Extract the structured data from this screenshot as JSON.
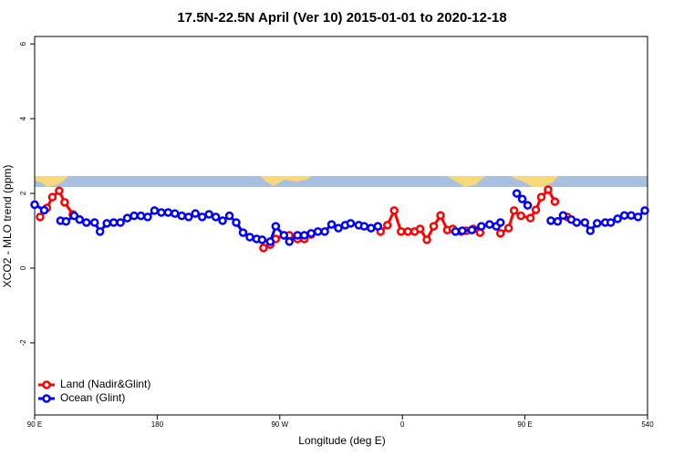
{
  "chart_data": {
    "type": "line",
    "title": "17.5N-22.5N April (Ver 10)   2015-01-01 to 2020-12-18",
    "xlabel": "Longitude (deg E)",
    "ylabel": "XCO2 - MLO trend (ppm)",
    "xlim": [
      90,
      540
    ],
    "ylim": [
      -3.93,
      6.2
    ],
    "xticks": [
      {
        "value": 90,
        "label": "90 E"
      },
      180,
      {
        "value": 270,
        "label": "90 W"
      },
      {
        "value": 360,
        "label": "0"
      },
      {
        "value": 450,
        "label": "90 E"
      },
      540
    ],
    "yticks": [
      -2,
      0,
      2,
      4,
      6
    ],
    "legend": "bottom-left",
    "series": [
      {
        "name": "Land (Nadir&Glint)",
        "color": "#ff0000",
        "x": [
          94,
          99,
          103,
          108,
          112,
          118,
          123,
          null,
          258,
          263,
          267,
          273,
          277,
          283,
          288,
          293,
          null,
          344,
          349,
          354,
          359,
          364,
          369,
          373,
          378,
          383,
          388,
          393,
          397,
          403,
          407,
          412,
          417,
          null,
          432,
          438,
          442,
          447,
          454,
          458,
          462,
          467,
          472,
          null,
          481
        ],
        "values": [
          1.37,
          1.61,
          1.9,
          2.07,
          1.76,
          1.44,
          1.3,
          null,
          0.54,
          0.63,
          0.78,
          0.88,
          0.88,
          0.78,
          0.78,
          0.9,
          null,
          0.98,
          1.15,
          1.54,
          0.98,
          0.98,
          0.98,
          1.05,
          0.76,
          1.12,
          1.41,
          1.02,
          1.05,
          0.98,
          1.0,
          1.05,
          0.95,
          null,
          0.93,
          1.07,
          1.54,
          1.4,
          1.34,
          1.56,
          1.9,
          2.1,
          1.78,
          null,
          1.37
        ]
      },
      {
        "name": "Ocean (Glint)",
        "color": "#0000ff",
        "x": [
          90,
          97,
          null,
          109,
          113,
          119,
          123,
          128,
          134,
          138,
          143,
          148,
          153,
          158,
          163,
          168,
          173,
          178,
          183,
          188,
          193,
          198,
          203,
          208,
          213,
          218,
          223,
          228,
          233,
          238,
          243,
          248,
          253,
          257,
          263,
          267,
          273,
          277,
          283,
          288,
          293,
          298,
          303,
          308,
          313,
          318,
          322,
          328,
          332,
          337,
          342,
          null,
          399,
          404,
          411,
          418,
          424,
          429,
          432,
          null,
          444,
          448,
          452,
          null,
          469,
          474,
          478,
          484,
          488,
          494,
          498,
          503,
          509,
          513,
          518,
          523,
          528,
          533,
          538
        ],
        "values": [
          1.7,
          1.55,
          null,
          1.27,
          1.25,
          1.4,
          1.3,
          1.22,
          1.22,
          0.98,
          1.2,
          1.22,
          1.22,
          1.34,
          1.4,
          1.4,
          1.37,
          1.54,
          1.49,
          1.49,
          1.46,
          1.4,
          1.37,
          1.46,
          1.37,
          1.44,
          1.37,
          1.27,
          1.4,
          1.22,
          0.95,
          0.83,
          0.78,
          0.76,
          0.71,
          1.12,
          0.88,
          0.71,
          0.88,
          0.88,
          0.93,
          0.98,
          0.98,
          1.17,
          1.07,
          1.15,
          1.2,
          1.15,
          1.12,
          1.07,
          1.12,
          null,
          0.98,
          1.0,
          1.02,
          1.12,
          1.17,
          1.12,
          1.22,
          null,
          2.0,
          1.85,
          1.68,
          null,
          1.27,
          1.25,
          1.41,
          1.3,
          1.22,
          1.22,
          1.0,
          1.2,
          1.22,
          1.22,
          1.32,
          1.41,
          1.41,
          1.37,
          1.54
        ]
      }
    ]
  }
}
